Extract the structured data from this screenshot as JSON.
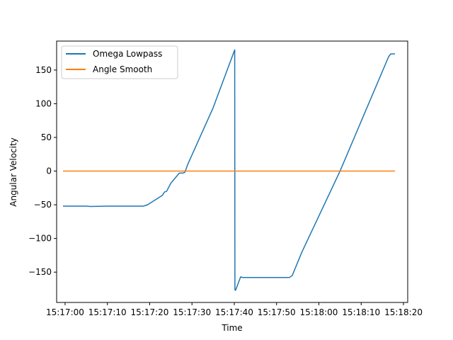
{
  "chart_data": {
    "type": "line",
    "title": "",
    "xlabel": "Time",
    "ylabel": "Angular Velocity",
    "grid": false,
    "legend_placement": "top-left",
    "xlim": [
      "15:16:58",
      "15:18:21"
    ],
    "ylim": [
      -195,
      193
    ],
    "x_ticks": [
      "15:17:00",
      "15:17:10",
      "15:17:20",
      "15:17:30",
      "15:17:40",
      "15:17:50",
      "15:18:00",
      "15:18:10",
      "15:18:20"
    ],
    "y_ticks": [
      -150,
      -100,
      -50,
      0,
      50,
      100,
      150
    ],
    "series": [
      {
        "name": "Omega Lowpass",
        "color": "#1f77b4",
        "x": [
          "15:16:59.5",
          "15:17:05",
          "15:17:06",
          "15:17:10",
          "15:17:15",
          "15:17:18.5",
          "15:17:19.5",
          "15:17:21",
          "15:17:22",
          "15:17:23",
          "15:17:23.5",
          "15:17:24",
          "15:17:25",
          "15:17:27",
          "15:17:27.8",
          "15:17:28.3",
          "15:17:29",
          "15:17:35",
          "15:17:40.1",
          "15:17:40.15",
          "15:17:40.3",
          "15:17:41.5",
          "15:17:42",
          "15:17:45",
          "15:17:50",
          "15:17:53",
          "15:17:53.7",
          "15:17:56",
          "15:18:05",
          "15:18:16.5",
          "15:18:17",
          "15:18:18"
        ],
        "values": [
          -52,
          -52,
          -52.5,
          -52,
          -52,
          -52,
          -50,
          -44,
          -40,
          -36,
          -31,
          -30,
          -18,
          -3,
          -3,
          -2,
          10,
          94,
          180,
          -176,
          -177,
          -157,
          -158,
          -158,
          -158,
          -158,
          -155,
          -120,
          0,
          170,
          174,
          174
        ]
      },
      {
        "name": "Angle Smooth",
        "color": "#ff7f0e",
        "x": [
          "15:16:59.5",
          "15:18:18"
        ],
        "values": [
          0,
          0
        ]
      }
    ]
  }
}
